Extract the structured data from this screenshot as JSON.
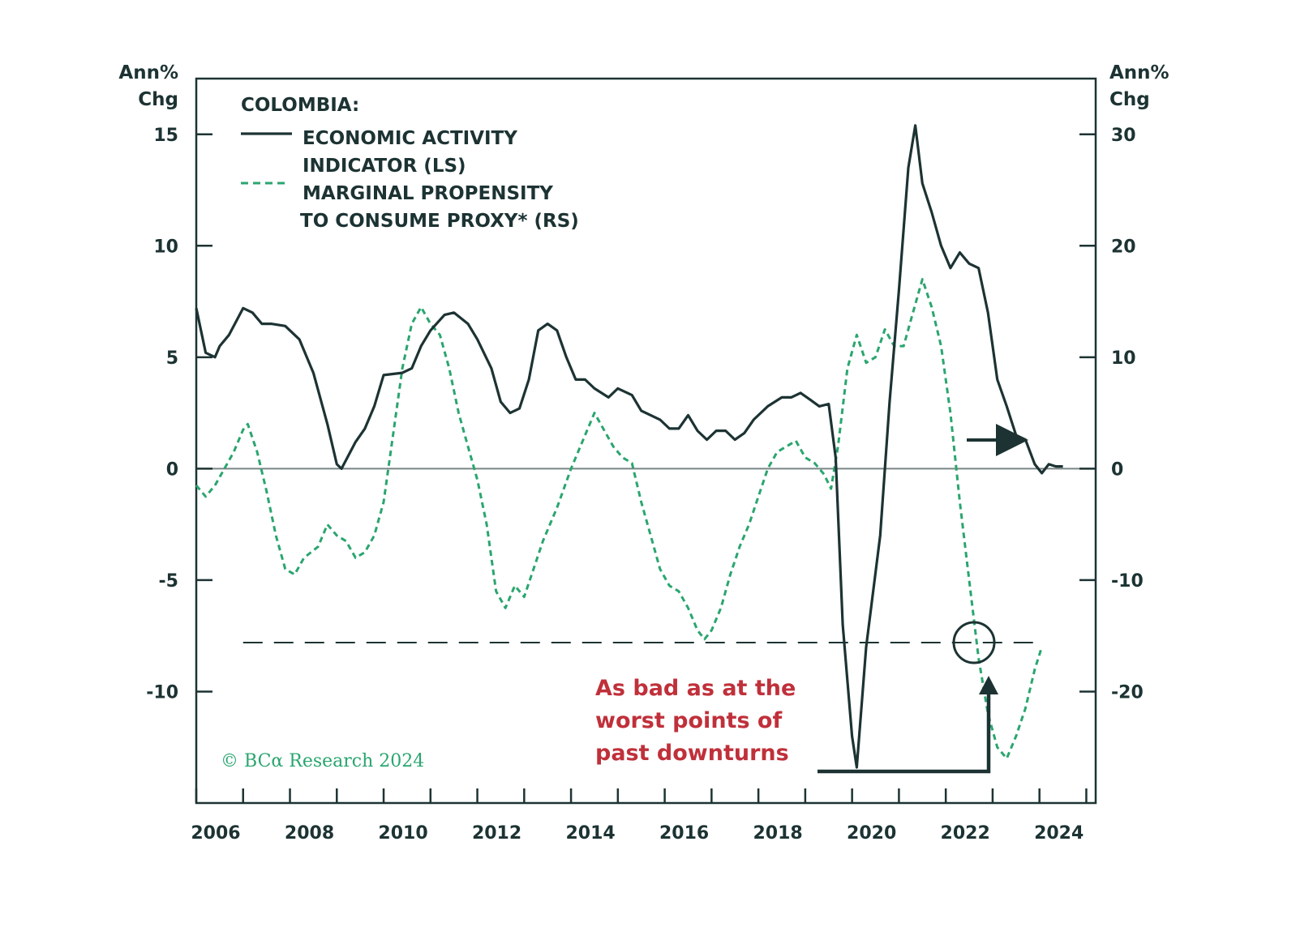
{
  "chart_data": {
    "type": "line",
    "left_axis": {
      "unit_line1": "Ann%",
      "unit_line2": "Chg",
      "ylim": [
        -15,
        17.5
      ],
      "ticks": [
        15,
        10,
        5,
        0,
        -5,
        -10
      ]
    },
    "right_axis": {
      "unit_line1": "Ann%",
      "unit_line2": "Chg",
      "ylim": [
        -30,
        35
      ],
      "ticks": [
        30,
        20,
        10,
        0,
        -10,
        -20
      ]
    },
    "x_axis": {
      "range": [
        2006,
        2025.2
      ],
      "tick_labels": [
        "2006",
        "2008",
        "2010",
        "2012",
        "2014",
        "2016",
        "2018",
        "2020",
        "2022",
        "2024"
      ]
    },
    "legend": {
      "title": "COLOMBIA:",
      "entries": [
        {
          "line1": "ECONOMIC ACTIVITY",
          "line2": "INDICATOR (LS)",
          "style": "solid",
          "color": "#1d3333"
        },
        {
          "line1": "MARGINAL PROPENSITY",
          "line2": "TO CONSUME PROXY* (RS)",
          "style": "dashed",
          "color": "#2aa56f"
        }
      ]
    },
    "series": [
      {
        "name": "ECONOMIC ACTIVITY INDICATOR (LS)",
        "axis": "left",
        "color": "#1d3333",
        "points": [
          [
            2006.0,
            7.2
          ],
          [
            2006.2,
            5.2
          ],
          [
            2006.4,
            5.0
          ],
          [
            2006.5,
            5.5
          ],
          [
            2006.7,
            6.0
          ],
          [
            2007.0,
            7.2
          ],
          [
            2007.2,
            7.0
          ],
          [
            2007.4,
            6.5
          ],
          [
            2007.6,
            6.5
          ],
          [
            2007.9,
            6.4
          ],
          [
            2008.2,
            5.8
          ],
          [
            2008.5,
            4.3
          ],
          [
            2008.8,
            2.0
          ],
          [
            2009.0,
            0.2
          ],
          [
            2009.1,
            0.0
          ],
          [
            2009.4,
            1.2
          ],
          [
            2009.6,
            1.8
          ],
          [
            2009.8,
            2.8
          ],
          [
            2010.0,
            4.2
          ],
          [
            2010.4,
            4.3
          ],
          [
            2010.6,
            4.5
          ],
          [
            2010.8,
            5.5
          ],
          [
            2011.0,
            6.2
          ],
          [
            2011.3,
            6.9
          ],
          [
            2011.5,
            7.0
          ],
          [
            2011.8,
            6.5
          ],
          [
            2012.0,
            5.8
          ],
          [
            2012.3,
            4.5
          ],
          [
            2012.5,
            3.0
          ],
          [
            2012.7,
            2.5
          ],
          [
            2012.9,
            2.7
          ],
          [
            2013.1,
            4.0
          ],
          [
            2013.3,
            6.2
          ],
          [
            2013.5,
            6.5
          ],
          [
            2013.7,
            6.2
          ],
          [
            2013.9,
            5.0
          ],
          [
            2014.1,
            4.0
          ],
          [
            2014.3,
            4.0
          ],
          [
            2014.5,
            3.6
          ],
          [
            2014.8,
            3.2
          ],
          [
            2015.0,
            3.6
          ],
          [
            2015.3,
            3.3
          ],
          [
            2015.5,
            2.6
          ],
          [
            2015.7,
            2.4
          ],
          [
            2015.9,
            2.2
          ],
          [
            2016.1,
            1.8
          ],
          [
            2016.3,
            1.8
          ],
          [
            2016.5,
            2.4
          ],
          [
            2016.7,
            1.7
          ],
          [
            2016.9,
            1.3
          ],
          [
            2017.1,
            1.7
          ],
          [
            2017.3,
            1.7
          ],
          [
            2017.5,
            1.3
          ],
          [
            2017.7,
            1.6
          ],
          [
            2017.9,
            2.2
          ],
          [
            2018.2,
            2.8
          ],
          [
            2018.5,
            3.2
          ],
          [
            2018.7,
            3.2
          ],
          [
            2018.9,
            3.4
          ],
          [
            2019.1,
            3.1
          ],
          [
            2019.3,
            2.8
          ],
          [
            2019.5,
            2.9
          ],
          [
            2019.65,
            0.5
          ],
          [
            2019.8,
            -7.0
          ],
          [
            2020.0,
            -12.0
          ],
          [
            2020.1,
            -13.4
          ],
          [
            2020.3,
            -8.0
          ],
          [
            2020.6,
            -3.0
          ],
          [
            2020.8,
            3.0
          ],
          [
            2021.0,
            8.0
          ],
          [
            2021.2,
            13.5
          ],
          [
            2021.35,
            15.4
          ],
          [
            2021.5,
            12.8
          ],
          [
            2021.7,
            11.5
          ],
          [
            2021.9,
            10.0
          ],
          [
            2022.1,
            9.0
          ],
          [
            2022.3,
            9.7
          ],
          [
            2022.5,
            9.2
          ],
          [
            2022.7,
            9.0
          ],
          [
            2022.9,
            7.0
          ],
          [
            2023.1,
            4.0
          ],
          [
            2023.3,
            2.8
          ],
          [
            2023.5,
            1.5
          ],
          [
            2023.7,
            1.3
          ],
          [
            2023.9,
            0.2
          ],
          [
            2024.05,
            -0.2
          ],
          [
            2024.2,
            0.2
          ],
          [
            2024.35,
            0.1
          ],
          [
            2024.5,
            0.1
          ]
        ]
      },
      {
        "name": "MARGINAL PROPENSITY TO CONSUME PROXY* (RS)",
        "axis": "right",
        "color": "#2aa56f",
        "points": [
          [
            2006.0,
            -1.5
          ],
          [
            2006.2,
            -2.5
          ],
          [
            2006.4,
            -1.5
          ],
          [
            2006.6,
            0.0
          ],
          [
            2006.8,
            1.5
          ],
          [
            2007.0,
            3.5
          ],
          [
            2007.1,
            4.0
          ],
          [
            2007.3,
            1.5
          ],
          [
            2007.5,
            -2.0
          ],
          [
            2007.7,
            -6.0
          ],
          [
            2007.9,
            -9.0
          ],
          [
            2008.1,
            -9.5
          ],
          [
            2008.3,
            -8.0
          ],
          [
            2008.6,
            -7.0
          ],
          [
            2008.8,
            -5.0
          ],
          [
            2009.0,
            -6.0
          ],
          [
            2009.2,
            -6.5
          ],
          [
            2009.4,
            -8.0
          ],
          [
            2009.6,
            -7.5
          ],
          [
            2009.8,
            -6.0
          ],
          [
            2010.0,
            -3.0
          ],
          [
            2010.2,
            3.0
          ],
          [
            2010.4,
            9.0
          ],
          [
            2010.6,
            13.0
          ],
          [
            2010.8,
            14.5
          ],
          [
            2011.0,
            13.0
          ],
          [
            2011.2,
            12.0
          ],
          [
            2011.4,
            9.0
          ],
          [
            2011.6,
            5.0
          ],
          [
            2011.8,
            2.0
          ],
          [
            2012.0,
            -1.0
          ],
          [
            2012.2,
            -5.0
          ],
          [
            2012.4,
            -11.0
          ],
          [
            2012.6,
            -12.5
          ],
          [
            2012.8,
            -10.5
          ],
          [
            2013.0,
            -11.5
          ],
          [
            2013.2,
            -9.0
          ],
          [
            2013.4,
            -6.5
          ],
          [
            2013.7,
            -3.5
          ],
          [
            2014.0,
            0.0
          ],
          [
            2014.3,
            3.0
          ],
          [
            2014.5,
            5.0
          ],
          [
            2014.7,
            3.5
          ],
          [
            2014.9,
            2.0
          ],
          [
            2015.1,
            1.0
          ],
          [
            2015.3,
            0.5
          ],
          [
            2015.5,
            -3.0
          ],
          [
            2015.7,
            -6.0
          ],
          [
            2015.9,
            -9.0
          ],
          [
            2016.1,
            -10.5
          ],
          [
            2016.3,
            -11.0
          ],
          [
            2016.5,
            -12.5
          ],
          [
            2016.7,
            -14.5
          ],
          [
            2016.85,
            -15.3
          ],
          [
            2017.0,
            -14.5
          ],
          [
            2017.2,
            -12.5
          ],
          [
            2017.4,
            -9.5
          ],
          [
            2017.6,
            -7.0
          ],
          [
            2017.8,
            -5.0
          ],
          [
            2018.0,
            -2.5
          ],
          [
            2018.2,
            0.0
          ],
          [
            2018.4,
            1.5
          ],
          [
            2018.6,
            2.0
          ],
          [
            2018.8,
            2.5
          ],
          [
            2019.0,
            1.0
          ],
          [
            2019.2,
            0.5
          ],
          [
            2019.4,
            -0.5
          ],
          [
            2019.55,
            -1.8
          ],
          [
            2019.7,
            2.0
          ],
          [
            2019.9,
            9.0
          ],
          [
            2020.1,
            12.0
          ],
          [
            2020.3,
            9.5
          ],
          [
            2020.5,
            10.0
          ],
          [
            2020.7,
            12.5
          ],
          [
            2020.9,
            11.0
          ],
          [
            2021.1,
            11.0
          ],
          [
            2021.3,
            14.0
          ],
          [
            2021.5,
            17.0
          ],
          [
            2021.7,
            14.5
          ],
          [
            2021.9,
            11.0
          ],
          [
            2022.1,
            5.0
          ],
          [
            2022.3,
            -3.0
          ],
          [
            2022.5,
            -10.0
          ],
          [
            2022.7,
            -17.0
          ],
          [
            2022.9,
            -22.0
          ],
          [
            2023.1,
            -25.0
          ],
          [
            2023.3,
            -26.0
          ],
          [
            2023.5,
            -24.0
          ],
          [
            2023.7,
            -21.5
          ],
          [
            2023.9,
            -18.0
          ],
          [
            2024.05,
            -16.0
          ]
        ]
      }
    ],
    "reference_line": {
      "axis": "left",
      "value": -7.8,
      "x_range": [
        2007.0,
        2024.0
      ]
    },
    "annotation": {
      "line1": "As bad as at the",
      "line2": "worst points of",
      "line3": "past downturns",
      "color": "#c0303a"
    },
    "callout_arrow": {
      "direction": "right",
      "color": "#1d3333"
    },
    "copyright": "© BCα Research 2024"
  }
}
